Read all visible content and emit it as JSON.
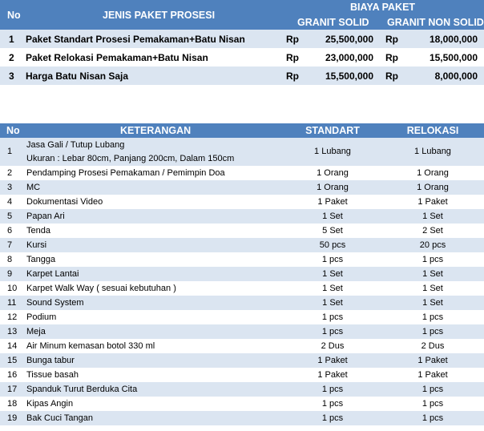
{
  "price_table": {
    "header": {
      "no": "No",
      "jenis": "JENIS PAKET PROSESI",
      "biaya": "BIAYA PAKET",
      "granit_solid": "GRANIT SOLID",
      "granit_non_solid": "GRANIT NON SOLID"
    },
    "rows": [
      {
        "no": "1",
        "name": "Paket Standart Prosesi Pemakaman+Batu Nisan",
        "rp1": "Rp",
        "price_solid": "25,500,000",
        "rp2": "Rp",
        "price_non_solid": "18,000,000"
      },
      {
        "no": "2",
        "name": "Paket Relokasi Pemakaman+Batu Nisan",
        "rp1": "Rp",
        "price_solid": "23,000,000",
        "rp2": "Rp",
        "price_non_solid": "15,500,000"
      },
      {
        "no": "3",
        "name": "Harga Batu Nisan Saja",
        "rp1": "Rp",
        "price_solid": "15,500,000",
        "rp2": "Rp",
        "price_non_solid": "8,000,000"
      }
    ]
  },
  "detail_table": {
    "header": {
      "no": "No",
      "keterangan": "KETERANGAN",
      "standart": "STANDART",
      "relokasi": "RELOKASI"
    },
    "rows": [
      {
        "no": "1",
        "desc": "Jasa Gali / Tutup Lubang",
        "desc2": "Ukuran : Lebar 80cm, Panjang 200cm, Dalam 150cm",
        "standart": "1 Lubang",
        "relokasi": "1 Lubang"
      },
      {
        "no": "2",
        "desc": "Pendamping Prosesi Pemakaman / Pemimpin Doa",
        "standart": "1 Orang",
        "relokasi": "1 Orang"
      },
      {
        "no": "3",
        "desc": "MC",
        "standart": "1 Orang",
        "relokasi": "1 Orang"
      },
      {
        "no": "4",
        "desc": "Dokumentasi Video",
        "standart": "1 Paket",
        "relokasi": "1 Paket"
      },
      {
        "no": "5",
        "desc": "Papan Ari",
        "standart": "1 Set",
        "relokasi": "1 Set"
      },
      {
        "no": "6",
        "desc": "Tenda",
        "standart": "5 Set",
        "relokasi": "2 Set"
      },
      {
        "no": "7",
        "desc": "Kursi",
        "standart": "50 pcs",
        "relokasi": "20 pcs"
      },
      {
        "no": "8",
        "desc": "Tangga",
        "standart": "1 pcs",
        "relokasi": "1 pcs"
      },
      {
        "no": "9",
        "desc": "Karpet Lantai",
        "standart": "1 Set",
        "relokasi": "1 Set"
      },
      {
        "no": "10",
        "desc": "Karpet Walk Way ( sesuai kebutuhan )",
        "standart": "1 Set",
        "relokasi": "1 Set"
      },
      {
        "no": "11",
        "desc": "Sound System",
        "standart": "1 Set",
        "relokasi": "1 Set"
      },
      {
        "no": "12",
        "desc": "Podium",
        "standart": "1 pcs",
        "relokasi": "1 pcs"
      },
      {
        "no": "13",
        "desc": "Meja",
        "standart": "1 pcs",
        "relokasi": "1 pcs"
      },
      {
        "no": "14",
        "desc": "Air Minum kemasan botol 330 ml",
        "standart": "2 Dus",
        "relokasi": "2 Dus"
      },
      {
        "no": "15",
        "desc": "Bunga tabur",
        "standart": "1 Paket",
        "relokasi": "1 Paket"
      },
      {
        "no": "16",
        "desc": "Tissue basah",
        "standart": "1 Paket",
        "relokasi": "1 Paket"
      },
      {
        "no": "17",
        "desc": "Spanduk Turut Berduka Cita",
        "standart": "1 pcs",
        "relokasi": "1 pcs"
      },
      {
        "no": "18",
        "desc": "Kipas Angin",
        "standart": "1 pcs",
        "relokasi": "1 pcs"
      },
      {
        "no": "19",
        "desc": "Bak Cuci Tangan",
        "standart": "1 pcs",
        "relokasi": "1 pcs"
      }
    ]
  },
  "colors": {
    "header_blue": "#4f81bd",
    "stripe": "#dbe5f1"
  }
}
